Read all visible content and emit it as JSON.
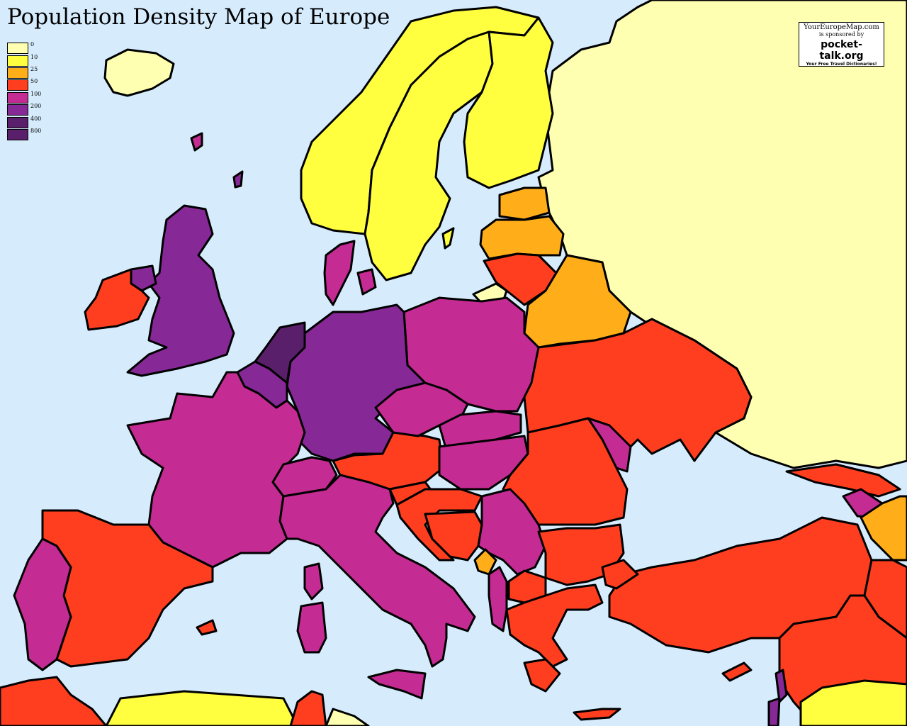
{
  "title": "Population Density Map of Europe",
  "legend": [
    {
      "label": "0",
      "color": "#ffffb2"
    },
    {
      "label": "10",
      "color": "#ffff40"
    },
    {
      "label": "25",
      "color": "#ffae1a"
    },
    {
      "label": "50",
      "color": "#ff3e1f"
    },
    {
      "label": "100",
      "color": "#c42b93"
    },
    {
      "label": "200",
      "color": "#862896"
    },
    {
      "label": "400",
      "color": "#5a1f6a"
    },
    {
      "label": "800",
      "color": "#5a1f6a"
    }
  ],
  "sponsor": {
    "site": "YourEuropeMap.com",
    "sponsored_by": "is sponsored by",
    "brand": "pocket-talk.org",
    "tagline": "Your Free Travel Dictionaries!"
  },
  "colors": {
    "sea": "#d6ecfd",
    "c0": "#ffffb2",
    "c10": "#ffff40",
    "c25": "#ffae1a",
    "c50": "#ff3e1f",
    "c100": "#c42b93",
    "c200": "#862896",
    "c400": "#5a1f6a"
  }
}
